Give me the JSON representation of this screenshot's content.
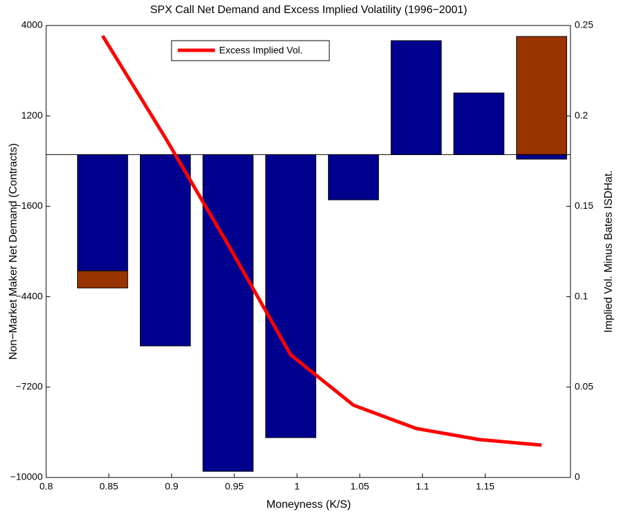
{
  "chart_data": {
    "type": "bar",
    "title": "SPX Call Net Demand and Excess Implied Volatility (1996−2001)",
    "xlabel": "Moneyness (K/S)",
    "ylabel": "Non−Market Maker Net Demand (Contracts)",
    "y2label": "Implied Vol. Minus Bates ISDHat.",
    "x": [
      0.845,
      0.895,
      0.945,
      0.995,
      1.045,
      1.095,
      1.145,
      1.195
    ],
    "xlim": [
      0.8,
      1.218
    ],
    "xticks": [
      0.8,
      0.85,
      0.9,
      0.95,
      1,
      1.05,
      1.1,
      1.15
    ],
    "ylim": [
      -10000,
      4000
    ],
    "yticks": [
      {
        "value": -10000,
        "label": "−10000"
      },
      {
        "value": -7200,
        "label": "−7200"
      },
      {
        "value": -4400,
        "label": "−4400"
      },
      {
        "value": -1600,
        "label": "−1600"
      },
      1200,
      4000
    ],
    "y2lim": [
      0,
      0.25
    ],
    "y2ticks": [
      0,
      0.05,
      0.1,
      0.15,
      0.2,
      0.25
    ],
    "series": [
      {
        "color": "#00008f",
        "values": [
          -3600,
          -5925,
          -9810,
          -8765,
          -1400,
          3530,
          1910,
          -140
        ]
      },
      {
        "color": "#993300",
        "values": [
          -530,
          null,
          null,
          null,
          null,
          null,
          null,
          3660
        ]
      },
      {
        "name": "Excess Implied Vol.",
        "type": "line",
        "axis": "y2",
        "color": "#ff0000",
        "values": [
          0.2443,
          0.1879,
          0.1288,
          0.0678,
          0.04,
          0.0271,
          0.021,
          0.0179
        ]
      }
    ]
  }
}
